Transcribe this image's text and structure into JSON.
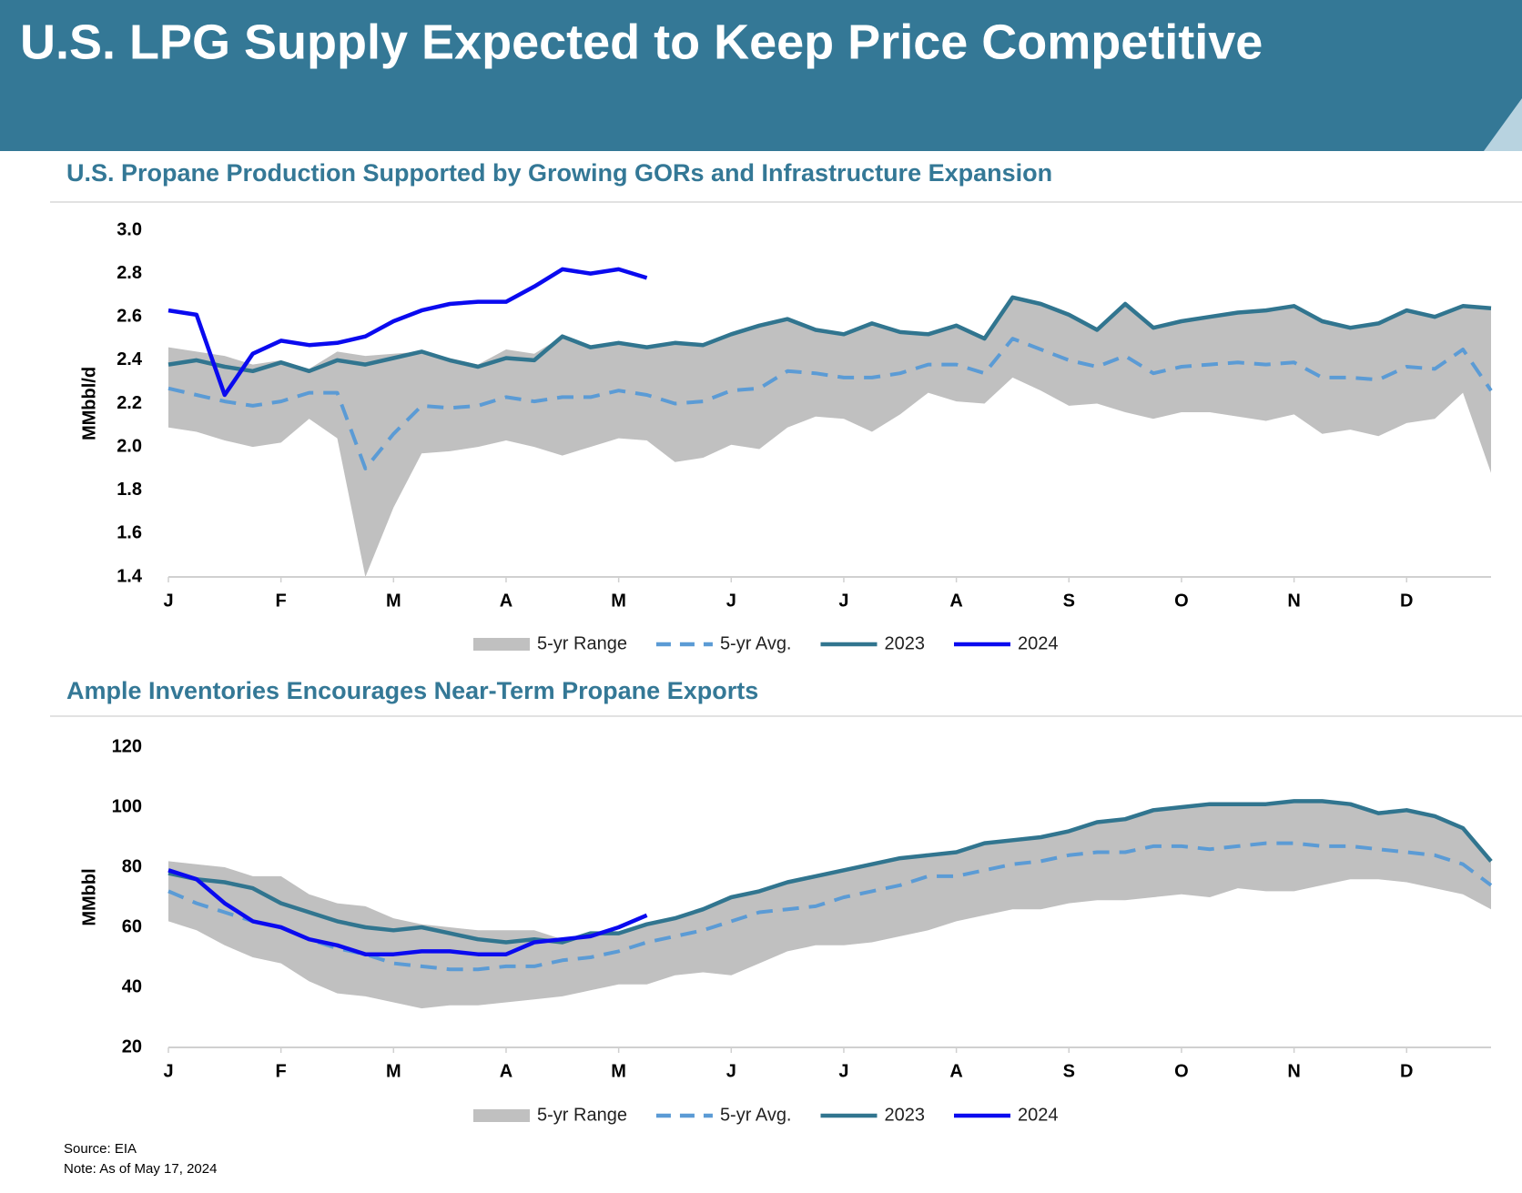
{
  "header": {
    "title": "U.S. LPG Supply Expected to Keep Price Competitive"
  },
  "chart_data": [
    {
      "type": "line",
      "title": "U.S. Propane Production Supported by Growing GORs and Infrastructure Expansion",
      "y_label": "MMbbl/d",
      "categories": [
        "J",
        null,
        null,
        null,
        "F",
        null,
        null,
        null,
        "M",
        null,
        null,
        null,
        "A",
        null,
        null,
        null,
        "M",
        null,
        null,
        null,
        "J",
        null,
        null,
        null,
        "J",
        null,
        null,
        null,
        "A",
        null,
        null,
        null,
        "S",
        null,
        null,
        null,
        "O",
        null,
        null,
        null,
        "N",
        null,
        null,
        null,
        "D",
        null,
        null,
        null
      ],
      "ylim": [
        1.4,
        3.0
      ],
      "yticks": [
        1.4,
        1.6,
        1.8,
        {
          "value": 2.0,
          "label": "2.0"
        },
        2.2,
        2.4,
        2.6,
        2.8,
        {
          "value": 3.0,
          "label": "3.0"
        }
      ],
      "series": [
        {
          "name": "5-yr Range",
          "color": "#c0c0c0",
          "style": "range",
          "low": [
            2.09,
            2.07,
            2.03,
            2.0,
            2.02,
            2.13,
            2.04,
            1.4,
            1.72,
            1.97,
            1.98,
            2.0,
            2.03,
            2.0,
            1.96,
            2.0,
            2.04,
            2.03,
            1.93,
            1.95,
            2.01,
            1.99,
            2.09,
            2.14,
            2.13,
            2.07,
            2.15,
            2.25,
            2.21,
            2.2,
            2.32,
            2.26,
            2.19,
            2.2,
            2.16,
            2.13,
            2.16,
            2.16,
            2.14,
            2.12,
            2.15,
            2.06,
            2.08,
            2.05,
            2.11,
            2.13,
            2.25,
            1.88
          ],
          "high": [
            2.46,
            2.44,
            2.42,
            2.38,
            2.4,
            2.36,
            2.44,
            2.42,
            2.43,
            2.44,
            2.41,
            2.38,
            2.45,
            2.43,
            2.51,
            2.46,
            2.48,
            2.46,
            2.48,
            2.47,
            2.52,
            2.56,
            2.59,
            2.54,
            2.52,
            2.57,
            2.53,
            2.52,
            2.56,
            2.5,
            2.69,
            2.66,
            2.61,
            2.54,
            2.66,
            2.55,
            2.58,
            2.6,
            2.62,
            2.63,
            2.65,
            2.58,
            2.55,
            2.57,
            2.63,
            2.6,
            2.65,
            2.64
          ]
        },
        {
          "name": "5-yr Avg.",
          "color": "#5b9bd5",
          "style": "dashed",
          "values": [
            2.27,
            2.24,
            2.21,
            2.19,
            2.21,
            2.25,
            2.25,
            1.9,
            2.06,
            2.19,
            2.18,
            2.19,
            2.23,
            2.21,
            2.23,
            2.23,
            2.26,
            2.24,
            2.2,
            2.21,
            2.26,
            2.27,
            2.35,
            2.34,
            2.32,
            2.32,
            2.34,
            2.38,
            2.38,
            2.34,
            2.5,
            2.45,
            2.4,
            2.37,
            2.42,
            2.34,
            2.37,
            2.38,
            2.39,
            2.38,
            2.39,
            2.32,
            2.32,
            2.31,
            2.37,
            2.36,
            2.45,
            2.26
          ]
        },
        {
          "name": "2023",
          "color": "#31758f",
          "style": "solid",
          "values": [
            2.38,
            2.4,
            2.37,
            2.35,
            2.39,
            2.35,
            2.4,
            2.38,
            2.41,
            2.44,
            2.4,
            2.37,
            2.41,
            2.4,
            2.51,
            2.46,
            2.48,
            2.46,
            2.48,
            2.47,
            2.52,
            2.56,
            2.59,
            2.54,
            2.52,
            2.57,
            2.53,
            2.52,
            2.56,
            2.5,
            2.69,
            2.66,
            2.61,
            2.54,
            2.66,
            2.55,
            2.58,
            2.6,
            2.62,
            2.63,
            2.65,
            2.58,
            2.55,
            2.57,
            2.63,
            2.6,
            2.65,
            2.64
          ]
        },
        {
          "name": "2024",
          "color": "#0a0aef",
          "style": "solid",
          "values": [
            2.63,
            2.61,
            2.24,
            2.43,
            2.49,
            2.47,
            2.48,
            2.51,
            2.58,
            2.63,
            2.66,
            2.67,
            2.67,
            2.74,
            2.82,
            2.8,
            2.82,
            2.78,
            null,
            null,
            null,
            null,
            null,
            null,
            null,
            null,
            null,
            null,
            null,
            null,
            null,
            null,
            null,
            null,
            null,
            null,
            null,
            null,
            null,
            null,
            null,
            null,
            null,
            null,
            null,
            null,
            null,
            null
          ]
        }
      ]
    },
    {
      "type": "line",
      "title": "Ample Inventories Encourages Near-Term Propane Exports",
      "y_label": "MMbbl",
      "categories": [
        "J",
        null,
        null,
        null,
        "F",
        null,
        null,
        null,
        "M",
        null,
        null,
        null,
        "A",
        null,
        null,
        null,
        "M",
        null,
        null,
        null,
        "J",
        null,
        null,
        null,
        "J",
        null,
        null,
        null,
        "A",
        null,
        null,
        null,
        "S",
        null,
        null,
        null,
        "O",
        null,
        null,
        null,
        "N",
        null,
        null,
        null,
        "D",
        null,
        null,
        null
      ],
      "ylim": [
        20,
        120
      ],
      "yticks": [
        20,
        40,
        60,
        80,
        100,
        120
      ],
      "series": [
        {
          "name": "5-yr Range",
          "color": "#c0c0c0",
          "style": "range",
          "low": [
            62,
            59,
            54,
            50,
            48,
            42,
            38,
            37,
            35,
            33,
            34,
            34,
            35,
            36,
            37,
            39,
            41,
            41,
            44,
            45,
            44,
            48,
            52,
            54,
            54,
            55,
            57,
            59,
            62,
            64,
            66,
            66,
            68,
            69,
            69,
            70,
            71,
            70,
            73,
            72,
            72,
            74,
            76,
            76,
            75,
            73,
            71,
            66
          ],
          "high": [
            82,
            81,
            80,
            77,
            77,
            71,
            68,
            67,
            63,
            61,
            60,
            59,
            59,
            59,
            56,
            58,
            58,
            61,
            63,
            66,
            70,
            72,
            75,
            77,
            79,
            81,
            83,
            84,
            85,
            88,
            89,
            90,
            92,
            95,
            96,
            99,
            100,
            101,
            101,
            101,
            102,
            102,
            101,
            98,
            99,
            97,
            93,
            82
          ]
        },
        {
          "name": "5-yr Avg.",
          "color": "#5b9bd5",
          "style": "dashed",
          "values": [
            72,
            68,
            65,
            62,
            60,
            56,
            53,
            51,
            48,
            47,
            46,
            46,
            47,
            47,
            49,
            50,
            52,
            55,
            57,
            59,
            62,
            65,
            66,
            67,
            70,
            72,
            74,
            77,
            77,
            79,
            81,
            82,
            84,
            85,
            85,
            87,
            87,
            86,
            87,
            88,
            88,
            87,
            87,
            86,
            85,
            84,
            81,
            74
          ]
        },
        {
          "name": "2023",
          "color": "#31758f",
          "style": "solid",
          "values": [
            78,
            76,
            75,
            73,
            68,
            65,
            62,
            60,
            59,
            60,
            58,
            56,
            55,
            56,
            55,
            58,
            58,
            61,
            63,
            66,
            70,
            72,
            75,
            77,
            79,
            81,
            83,
            84,
            85,
            88,
            89,
            90,
            92,
            95,
            96,
            99,
            100,
            101,
            101,
            101,
            102,
            102,
            101,
            98,
            99,
            97,
            93,
            82
          ]
        },
        {
          "name": "2024",
          "color": "#0a0aef",
          "style": "solid",
          "values": [
            79,
            76,
            68,
            62,
            60,
            56,
            54,
            51,
            51,
            52,
            52,
            51,
            51,
            55,
            56,
            57,
            60,
            64,
            null,
            null,
            null,
            null,
            null,
            null,
            null,
            null,
            null,
            null,
            null,
            null,
            null,
            null,
            null,
            null,
            null,
            null,
            null,
            null,
            null,
            null,
            null,
            null,
            null,
            null,
            null,
            null,
            null,
            null
          ]
        }
      ]
    }
  ],
  "footer": {
    "source": "Source: EIA",
    "note": "Note: As of May 17, 2024"
  }
}
